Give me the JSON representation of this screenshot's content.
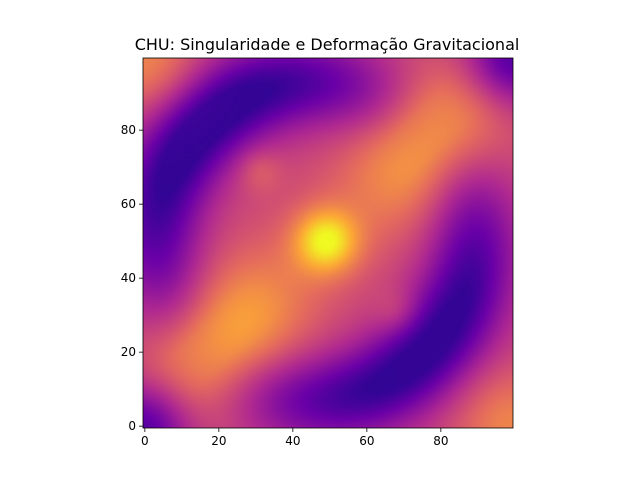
{
  "chart_data": {
    "type": "heatmap",
    "title": "CHU: Singularidade e Deformação Gravitacional",
    "xlabel": "",
    "ylabel": "",
    "grid_size": [
      100,
      100
    ],
    "xlim": [
      -0.5,
      99.5
    ],
    "ylim": [
      99.5,
      -0.5
    ],
    "x_ticks": [
      0,
      20,
      40,
      60,
      80
    ],
    "y_ticks": [
      0,
      20,
      40,
      60,
      80
    ],
    "x_tick_labels": [
      "0",
      "20",
      "40",
      "60",
      "80"
    ],
    "y_tick_labels": [
      "0",
      "20",
      "40",
      "60",
      "80"
    ],
    "colormap": "plasma",
    "colormap_stops": [
      "#0d0887",
      "#6a00a8",
      "#b12a90",
      "#e16462",
      "#fca636",
      "#f0f921"
    ],
    "value_range": [
      0,
      1
    ],
    "grid": false,
    "colorbar": false,
    "features": [
      {
        "label": "baseline",
        "x": 0,
        "y": 0,
        "value": 0.5
      },
      {
        "label": "central singularity",
        "x": 49,
        "y": 49,
        "value": 0.95
      },
      {
        "label": "bright lobe upper-right",
        "x": 76,
        "y": 23,
        "value": 0.82
      },
      {
        "label": "bright lobe lower-left",
        "x": 22,
        "y": 75,
        "value": 0.84
      },
      {
        "label": "dark arc upper-left",
        "x": 20,
        "y": 15,
        "value": 0.12
      },
      {
        "label": "dark arc lower-right",
        "x": 80,
        "y": 82,
        "value": 0.12
      },
      {
        "label": "faint spot upper-left",
        "x": 31,
        "y": 30,
        "value": 0.6
      },
      {
        "label": "faint spot lower-right",
        "x": 68,
        "y": 68,
        "value": 0.58
      },
      {
        "label": "corner top-left",
        "x": 0,
        "y": 0,
        "value": 0.7
      },
      {
        "label": "corner bottom-right",
        "x": 99,
        "y": 99,
        "value": 0.7
      },
      {
        "label": "corner top-right",
        "x": 99,
        "y": 0,
        "value": 0.1
      },
      {
        "label": "corner bottom-left",
        "x": 0,
        "y": 99,
        "value": 0.1
      }
    ]
  }
}
